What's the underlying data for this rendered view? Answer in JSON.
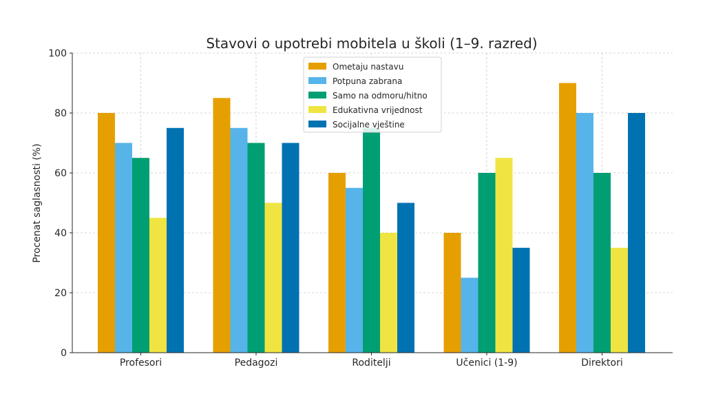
{
  "chart_data": {
    "type": "bar",
    "title": "Stavovi o upotrebi mobitela u školi (1–9. razred)",
    "xlabel": "",
    "ylabel": "Procenat saglasnosti (%)",
    "ylim": [
      0,
      100
    ],
    "yticks": [
      0,
      20,
      40,
      60,
      80,
      100
    ],
    "grid": true,
    "legend_position": "top-center",
    "categories": [
      "Profesori",
      "Pedagozi",
      "Roditelji",
      "Učenici (1-9)",
      "Direktori"
    ],
    "series": [
      {
        "name": "Ometaju nastavu",
        "color": "#E69F00",
        "values": [
          80,
          85,
          60,
          40,
          90
        ]
      },
      {
        "name": "Potpuna zabrana",
        "color": "#56B4E9",
        "values": [
          70,
          75,
          55,
          25,
          80
        ]
      },
      {
        "name": "Samo na odmoru/hitno",
        "color": "#009E73",
        "values": [
          65,
          70,
          75,
          60,
          60
        ]
      },
      {
        "name": "Edukativna vrijednost",
        "color": "#F0E442",
        "values": [
          45,
          50,
          40,
          65,
          35
        ]
      },
      {
        "name": "Socijalne vještine",
        "color": "#0072B2",
        "values": [
          75,
          70,
          50,
          35,
          80
        ]
      }
    ]
  }
}
